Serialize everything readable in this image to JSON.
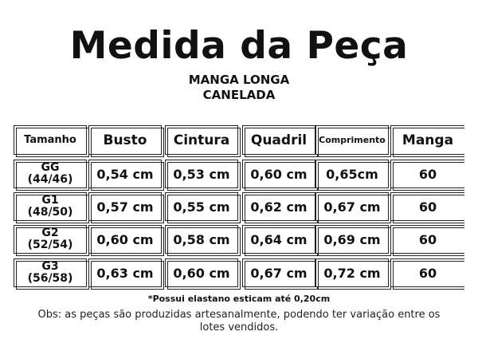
{
  "title": "Medida da Peça",
  "subtitle_line1": "MANGA LONGA",
  "subtitle_line2": "CANELADA",
  "table": {
    "headers": [
      "Tamanho",
      "Busto",
      "Cintura",
      "Quadril",
      "Comprimento",
      "Manga"
    ],
    "rows": [
      {
        "size": "GG",
        "size_range": "(44/46)",
        "busto": "0,54 cm",
        "cintura": "0,53 cm",
        "quadril": "0,60 cm",
        "comprimento": "0,65cm",
        "manga": "60"
      },
      {
        "size": "G1",
        "size_range": "(48/50)",
        "busto": "0,57 cm",
        "cintura": "0,55 cm",
        "quadril": "0,62 cm",
        "comprimento": "0,67 cm",
        "manga": "60"
      },
      {
        "size": "G2",
        "size_range": "(52/54)",
        "busto": "0,60 cm",
        "cintura": "0,58 cm",
        "quadril": "0,64 cm",
        "comprimento": "0,69 cm",
        "manga": "60"
      },
      {
        "size": "G3",
        "size_range": "(56/58)",
        "busto": "0,63 cm",
        "cintura": "0,60 cm",
        "quadril": "0,67 cm",
        "comprimento": "0,72 cm",
        "manga": "60"
      }
    ]
  },
  "note": "*Possui elastano esticam até  0,20cm",
  "obs": "Obs: as peças são produzidas artesanalmente, podendo ter variação entre os lotes vendidos."
}
